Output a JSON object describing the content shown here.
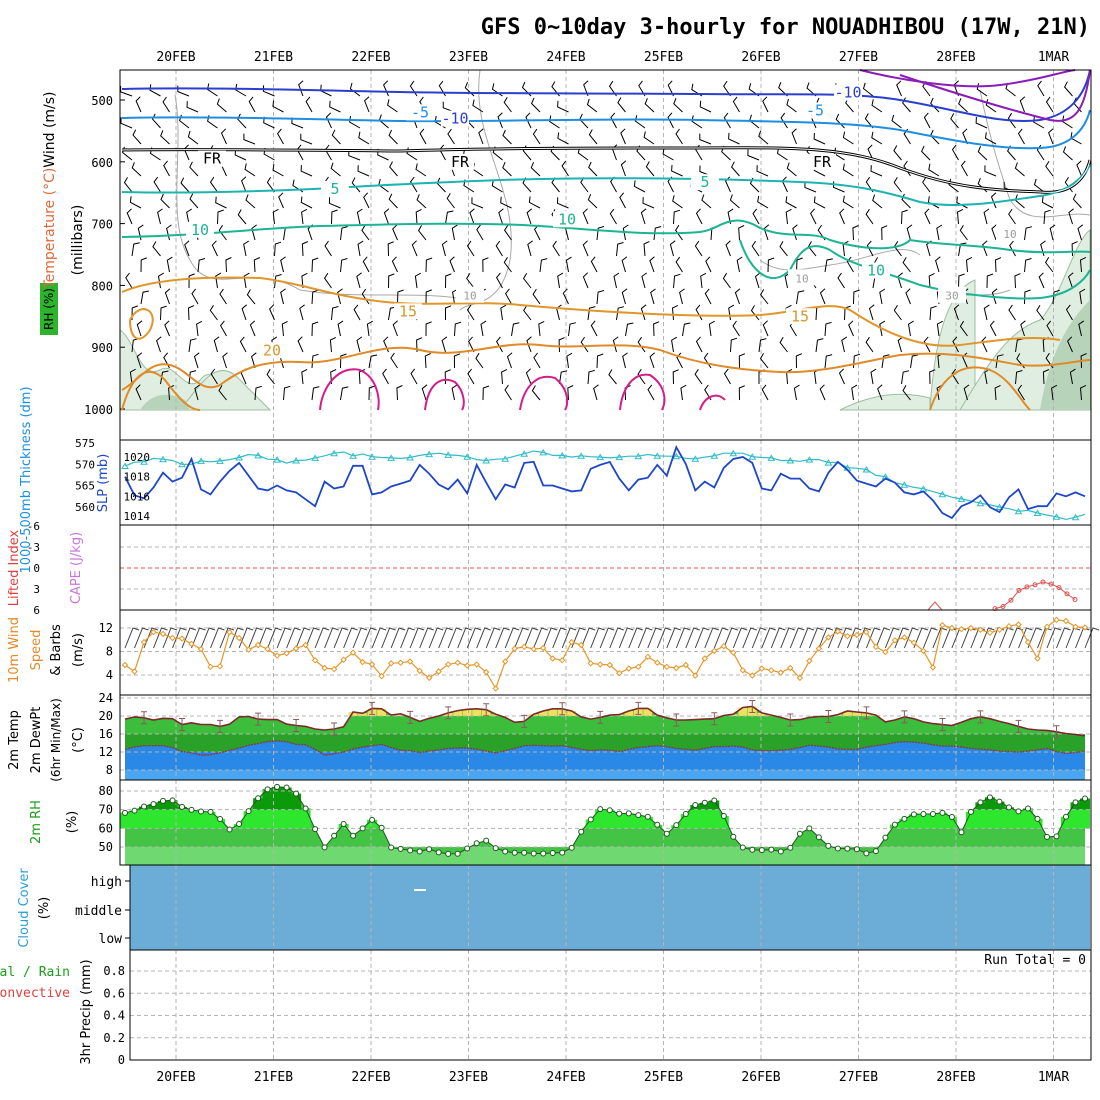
{
  "chart_data": {
    "type": "meteogram",
    "title": "GFS 0~10day 3-hourly for NOUADHIBOU (17W, 21N)",
    "dates": [
      "20FEB",
      "21FEB",
      "22FEB",
      "23FEB",
      "24FEB",
      "25FEB",
      "26FEB",
      "27FEB",
      "28FEB",
      "1MAR"
    ],
    "colors": {
      "grid": "#b4b4b4",
      "frame": "#000000",
      "slp": "#1e46c8",
      "thick": "#30bcc8",
      "rh_dark": "#0a9a0a",
      "rh_light": "#2de62d",
      "cloud": "#6badd6",
      "temp_fill": "#2db42d",
      "dew_fill": "#2a88e6",
      "warm_fill": "#f0e060",
      "wind10": "#e69628"
    },
    "panels": [
      {
        "id": "upper_air",
        "ylabel_parts": [
          "RH (%)",
          "Temperature (°C)",
          "Wind (m/s)"
        ],
        "axis_label": "(millibars)",
        "yticks": [
          "500",
          "600",
          "700",
          "800",
          "900",
          "1000"
        ],
        "contour_labels": [
          {
            "label": "-10",
            "kind": "temp_neg",
            "x": 4,
            "y": 530
          },
          {
            "label": "-10",
            "kind": "temp_neg",
            "x": 4,
            "y": 488
          },
          {
            "label": "-5",
            "kind": "temp_neg",
            "x": 4,
            "y": 520
          },
          {
            "label": "-5",
            "kind": "temp_neg",
            "x": 4,
            "y": 517
          },
          {
            "label": "FR",
            "kind": "freezing",
            "x": 4,
            "y": 595
          },
          {
            "label": "FR",
            "kind": "freezing",
            "x": 4,
            "y": 600
          },
          {
            "label": "FR",
            "kind": "freezing",
            "x": 4,
            "y": 600
          },
          {
            "label": "5",
            "kind": "temp",
            "x": 4,
            "y": 644
          },
          {
            "label": "5",
            "kind": "temp",
            "x": 4,
            "y": 633
          },
          {
            "label": "10",
            "kind": "temp",
            "x": 4,
            "y": 710
          },
          {
            "label": "10",
            "kind": "temp",
            "x": 4,
            "y": 693
          },
          {
            "label": "10",
            "kind": "temp",
            "x": 4,
            "y": 776
          },
          {
            "label": "15",
            "kind": "temp_warm",
            "x": 4,
            "y": 842
          },
          {
            "label": "15",
            "kind": "temp_warm",
            "x": 4,
            "y": 850
          },
          {
            "label": "20",
            "kind": "temp_warm",
            "x": 4,
            "y": 905
          },
          {
            "label": "10",
            "kind": "rh",
            "x": 4,
            "y": 815
          },
          {
            "label": "10",
            "kind": "rh",
            "x": 4,
            "y": 787
          },
          {
            "label": "10",
            "kind": "rh",
            "x": 4,
            "y": 715
          },
          {
            "label": "30",
            "kind": "rh",
            "x": 4,
            "y": 815
          }
        ]
      },
      {
        "id": "slp_thickness",
        "ylabel_left": "1000-500mb Thickness (dm)",
        "ylabel_right": "SLP (mb)",
        "yticks_left": [
          "575",
          "570",
          "565",
          "560"
        ],
        "yticks_right": [
          "1020",
          "1018",
          "1016",
          "1014"
        ],
        "slp_mb": [
          1018.0,
          1016.1,
          1015.8,
          1016.9,
          1018.4,
          1017.5,
          1017.9,
          1019.8,
          1016.7,
          1016.2,
          1017.5,
          1018.6,
          1019.4,
          1018.1,
          1016.8,
          1016.6,
          1017.1,
          1016.6,
          1016.4,
          1015.7,
          1015.0,
          1017.5,
          1016.8,
          1017.0,
          1019.1,
          1019.1,
          1016.2,
          1016.4,
          1017.0,
          1017.3,
          1017.6,
          1019.2,
          1018.3,
          1017.2,
          1016.7,
          1017.7,
          1016.3,
          1019.2,
          1017.4,
          1015.7,
          1017.2,
          1016.9,
          1019.4,
          1019.5,
          1017.1,
          1017.1,
          1016.8,
          1016.5,
          1016.6,
          1018.8,
          1019.2,
          1019.5,
          1017.8,
          1016.6,
          1017.7,
          1017.9,
          1019.2,
          1018.1,
          1021.0,
          1019.3,
          1016.6,
          1017.5,
          1016.9,
          1018.9,
          1019.8,
          1020.0,
          1019.4,
          1016.8,
          1016.6,
          1018.3,
          1017.8,
          1017.8,
          1016.8,
          1016.5,
          1018.4,
          1019.5,
          1018.7,
          1017.6,
          1017.3,
          1017.0,
          1017.8,
          1017.4,
          1016.4,
          1016.2,
          1016.5,
          1015.6,
          1014.3,
          1013.8,
          1015.0,
          1015.4,
          1016.1,
          1014.9,
          1014.4,
          1015.9,
          1016.7,
          1014.7,
          1015.0,
          1015.0,
          1016.3,
          1016.0,
          1016.4,
          1016.0
        ],
        "thickness_dm": [
          569.6,
          570.5,
          570.6,
          571.4,
          571.2,
          570.9,
          570.0,
          570.0,
          570.8,
          570.6,
          570.8,
          571.1,
          571.6,
          572.3,
          572.1,
          571.2,
          571.1,
          570.3,
          570.9,
          571.0,
          571.5,
          572.0,
          572.6,
          572.9,
          572.0,
          572.4,
          571.8,
          571.6,
          571.5,
          571.4,
          571.6,
          572.1,
          572.4,
          572.6,
          572.2,
          572.1,
          571.8,
          571.1,
          570.9,
          571.2,
          571.3,
          571.9,
          572.5,
          573.1,
          572.8,
          572.1,
          572.1,
          571.7,
          572.0,
          571.8,
          571.7,
          571.5,
          571.7,
          571.9,
          571.9,
          572.3,
          572.0,
          571.9,
          571.9,
          571.4,
          571.3,
          571.7,
          572.0,
          572.6,
          572.6,
          572.6,
          571.8,
          571.6,
          571.5,
          570.9,
          570.9,
          570.7,
          571.1,
          571.1,
          570.4,
          570.5,
          569.2,
          569.1,
          568.8,
          567.4,
          567.1,
          565.7,
          565.2,
          564.6,
          564.3,
          563.6,
          563.0,
          562.3,
          561.9,
          561.4,
          560.9,
          560.5,
          560.0,
          559.6,
          559.0,
          559.2,
          558.6,
          558.1,
          557.7,
          557.1,
          557.6,
          558.3
        ]
      },
      {
        "id": "instability",
        "ylabel_left": "Lifted Index",
        "ylabel_right": "CAPE (J/kg)",
        "yticks": [
          "-6",
          "-3",
          "0",
          "3",
          "6"
        ],
        "lifted_index": [
          5.8,
          5.5,
          4.6,
          3.2,
          2.7,
          2.4,
          2.0,
          2.3,
          2.8,
          3.7,
          4.5
        ]
      },
      {
        "id": "wind10m",
        "ylabel": "10m Wind Speed & Barbs (m/s)",
        "yticks": [
          "12",
          "8",
          "4"
        ],
        "speed_ms": [
          5.7,
          4.6,
          9.6,
          11.3,
          11.0,
          10.3,
          10.2,
          9.3,
          8.4,
          5.4,
          5.5,
          11.3,
          10.3,
          8.3,
          9.1,
          8.4,
          7.3,
          7.7,
          8.5,
          9.1,
          6.5,
          5.2,
          5.0,
          6.6,
          7.8,
          6.2,
          5.8,
          3.8,
          6.0,
          6.1,
          6.3,
          4.7,
          3.5,
          4.6,
          5.8,
          6.1,
          5.6,
          5.8,
          4.5,
          1.7,
          6.3,
          8.5,
          8.8,
          8.4,
          8.6,
          6.8,
          6.5,
          9.6,
          9.1,
          6.0,
          5.8,
          5.7,
          4.3,
          5.1,
          5.4,
          7.1,
          6.1,
          5.4,
          5.2,
          5.7,
          3.9,
          6.8,
          8.1,
          8.9,
          7.8,
          4.8,
          3.9,
          5.1,
          4.8,
          4.4,
          5.2,
          3.5,
          6.4,
          8.5,
          10.4,
          11.4,
          10.6,
          10.8,
          11.3,
          8.8,
          7.9,
          9.9,
          10.4,
          9.5,
          8.1,
          5.3,
          12.5,
          12.0,
          11.8,
          12.0,
          11.7,
          11.2,
          11.7,
          12.3,
          12.6,
          9.6,
          6.8,
          12.2,
          13.4,
          13.2,
          12.2,
          12.1
        ]
      },
      {
        "id": "temp2m",
        "ylabel": "2m Temp 2m DewPt (6hr Min/Max) (°C)",
        "yticks": [
          "24",
          "20",
          "16",
          "12",
          "8"
        ],
        "temp_c": [
          19.3,
          19.8,
          19.6,
          19.1,
          19.5,
          19.4,
          18.1,
          18.5,
          18.1,
          18.1,
          17.7,
          18.2,
          19.8,
          19.9,
          19.3,
          19.2,
          19.2,
          18.2,
          17.9,
          17.7,
          17.1,
          16.9,
          17.1,
          17.6,
          20.9,
          20.6,
          21.7,
          21.6,
          20.2,
          20.5,
          19.7,
          18.8,
          19.5,
          20.0,
          20.7,
          21.2,
          21.5,
          21.6,
          21.4,
          20.4,
          19.7,
          18.6,
          18.8,
          20.4,
          21.1,
          21.6,
          21.6,
          21.1,
          19.8,
          19.3,
          19.7,
          20.2,
          20.3,
          21.1,
          21.7,
          21.7,
          20.2,
          19.6,
          19.1,
          19.1,
          19.2,
          19.3,
          19.4,
          20.1,
          20.4,
          21.9,
          22.1,
          20.7,
          20.2,
          19.7,
          19.1,
          19.2,
          19.7,
          19.9,
          19.9,
          20.3,
          21.1,
          20.9,
          20.7,
          20.2,
          18.7,
          19.1,
          19.8,
          19.4,
          18.7,
          18.3,
          18.1,
          17.9,
          18.6,
          19.4,
          19.8,
          19.4,
          18.8,
          18.3,
          17.7,
          17.1,
          16.9,
          16.8,
          16.5,
          16.1,
          15.9,
          15.6
        ],
        "dewpt_c": [
          12.6,
          13.1,
          13.4,
          13.4,
          13.4,
          13.0,
          12.1,
          11.8,
          11.3,
          11.4,
          11.8,
          12.4,
          12.9,
          13.5,
          13.9,
          14.3,
          14.5,
          14.3,
          13.7,
          13.6,
          12.6,
          11.3,
          11.6,
          12.0,
          12.7,
          13.1,
          13.4,
          13.7,
          13.0,
          12.4,
          12.3,
          11.9,
          12.2,
          12.5,
          12.8,
          12.9,
          12.9,
          12.6,
          12.2,
          11.8,
          12.3,
          12.8,
          13.4,
          13.5,
          13.4,
          13.3,
          13.4,
          13.0,
          12.6,
          12.3,
          12.5,
          12.4,
          12.1,
          12.6,
          13.0,
          13.2,
          13.4,
          13.2,
          12.8,
          12.6,
          12.4,
          12.8,
          13.2,
          13.2,
          13.3,
          13.1,
          12.5,
          12.3,
          12.3,
          12.4,
          12.6,
          13.0,
          13.5,
          13.3,
          13.1,
          12.7,
          12.6,
          12.6,
          13.1,
          13.4,
          13.7,
          14.1,
          14.3,
          14.2,
          14.0,
          13.6,
          13.3,
          13.3,
          13.1,
          12.8,
          12.6,
          12.5,
          12.2,
          12.1,
          12.0,
          12.2,
          12.5,
          12.8,
          12.1,
          11.7,
          11.9,
          12.2
        ]
      },
      {
        "id": "rh2m",
        "ylabel": "2m RH (%)",
        "yticks": [
          "80",
          "70",
          "60",
          "50"
        ],
        "rh_pct": [
          68.3,
          69.5,
          71.7,
          73.0,
          74.7,
          75.0,
          71.5,
          69.9,
          69.0,
          68.8,
          65.0,
          59.4,
          62.3,
          69.2,
          76.1,
          80.9,
          82.2,
          81.9,
          78.6,
          70.6,
          59.6,
          49.8,
          56.0,
          62.3,
          56.0,
          60.0,
          64.5,
          60.3,
          49.7,
          49.0,
          48.2,
          47.6,
          48.8,
          47.1,
          46.3,
          46.4,
          49.2,
          52.0,
          53.4,
          49.4,
          47.6,
          46.9,
          46.9,
          46.5,
          46.5,
          46.8,
          47.0,
          49.6,
          58.2,
          64.7,
          70.3,
          69.7,
          67.9,
          68.0,
          67.1,
          66.2,
          61.9,
          57.1,
          61.7,
          67.7,
          72.5,
          73.7,
          74.9,
          66.6,
          55.5,
          49.7,
          48.5,
          48.3,
          48.6,
          47.6,
          49.6,
          57.1,
          60.0,
          55.2,
          50.6,
          49.2,
          49.1,
          48.8,
          46.6,
          47.8,
          55.0,
          62.0,
          65.1,
          67.5,
          67.7,
          67.7,
          68.3,
          66.1,
          57.9,
          68.8,
          73.9,
          76.6,
          74.3,
          71.2,
          69.1,
          70.6,
          65.1,
          55.4,
          55.7,
          66.2,
          73.9,
          76.0
        ]
      },
      {
        "id": "cloud",
        "ylabel": "Cloud Cover (%)",
        "levels": [
          "high",
          "middle",
          "low"
        ]
      },
      {
        "id": "precip",
        "ylabel": "3hr Precip (mm)",
        "side_label_top": "Total / Rain",
        "side_label_bottom": "Convective",
        "yticks": [
          "0.8",
          "0.6",
          "0.4",
          "0.2",
          "0"
        ],
        "run_total": "Run Total = 0"
      }
    ]
  }
}
